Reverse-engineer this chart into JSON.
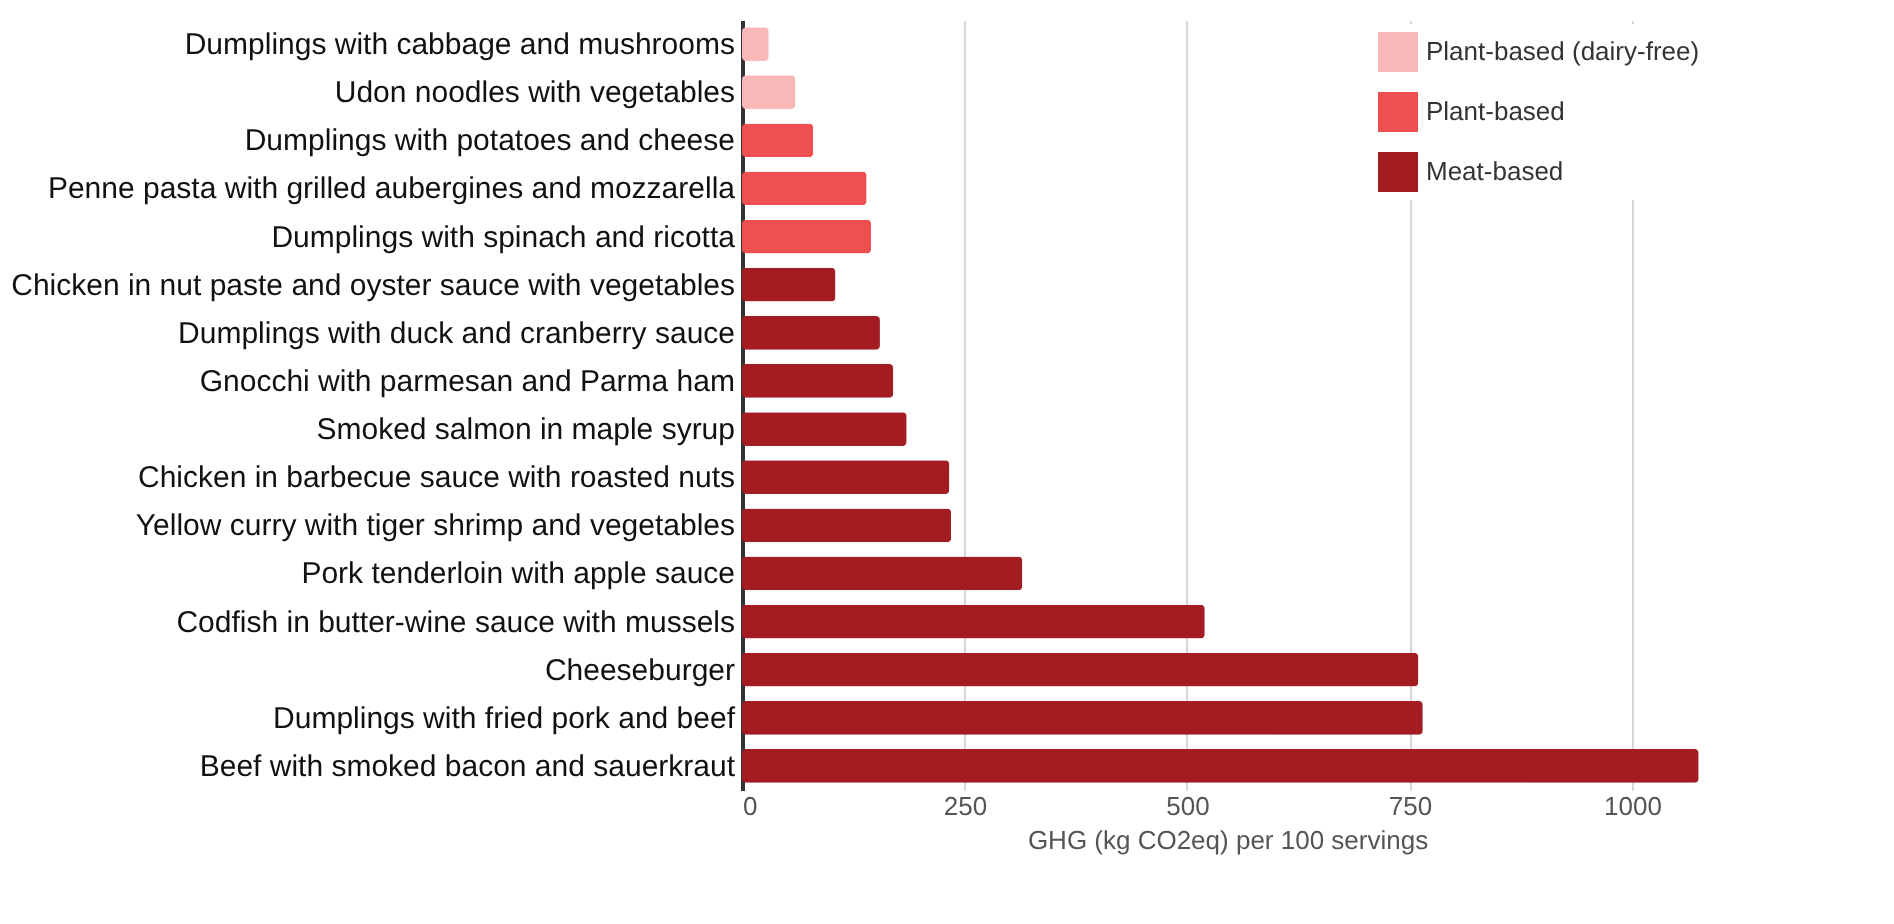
{
  "chart_data": {
    "type": "bar",
    "orientation": "horizontal",
    "xlabel": "GHG (kg CO2eq) per 100 servings",
    "categories": [
      "Dumplings with cabbage and mushrooms",
      "Udon noodles with vegetables",
      "Dumplings with potatoes and cheese",
      "Penne pasta with grilled aubergines and mozzarella",
      "Dumplings with spinach and ricotta",
      "Chicken in nut paste and oyster sauce with vegetables",
      "Dumplings with duck and cranberry sauce",
      "Gnocchi with parmesan and Parma ham",
      "Smoked salmon in maple syrup",
      "Chicken in barbecue sauce with roasted nuts",
      "Yellow curry with tiger shrimp and vegetables",
      "Pork tenderloin with apple sauce",
      "Codfish in butter-wine sauce with mussels",
      "Cheeseburger",
      "Dumplings with fried pork and beef",
      "Beef with smoked bacon and sauerkraut"
    ],
    "series": [
      {
        "name": "Plant-based (dairy-free)",
        "color": "#f9b8b8",
        "values": [
          30,
          60,
          null,
          null,
          null,
          null,
          null,
          null,
          null,
          null,
          null,
          null,
          null,
          null,
          null,
          null
        ]
      },
      {
        "name": "Plant-based",
        "color": "#ee5050",
        "values": [
          null,
          null,
          80,
          140,
          145,
          null,
          null,
          null,
          null,
          null,
          null,
          null,
          null,
          null,
          null,
          null
        ]
      },
      {
        "name": "Meat-based",
        "color": "#a31c22",
        "values": [
          null,
          null,
          null,
          null,
          null,
          105,
          155,
          170,
          185,
          233,
          235,
          315,
          520,
          760,
          765,
          1075
        ]
      }
    ],
    "xlim": [
      0,
      1090
    ],
    "xticks": [
      0,
      250,
      500,
      750,
      1000
    ],
    "grid": "x",
    "legend": "top right"
  }
}
